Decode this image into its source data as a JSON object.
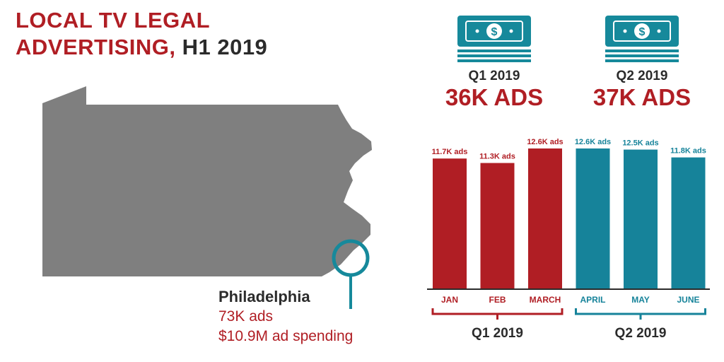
{
  "title": {
    "line1": "LOCAL TV LEGAL",
    "line2_red": "ADVERTISING,",
    "line2_dark": "H1 2019"
  },
  "map": {
    "region_color": "#7f7f7f",
    "callout_color": "#16899b"
  },
  "callout": {
    "city": "Philadelphia",
    "ads": "73K ads",
    "spending": "$10.9M ad spending"
  },
  "quarters": [
    {
      "label": "Q1 2019",
      "value": "36K ADS",
      "icon": "money-stack-icon"
    },
    {
      "label": "Q2 2019",
      "value": "37K ADS",
      "icon": "money-stack-icon"
    }
  ],
  "colors": {
    "q1": "#b01e24",
    "q2": "#16839a",
    "text_dark": "#2b2b2b",
    "map_gray": "#7f7f7f"
  },
  "chart_data": {
    "type": "bar",
    "categories": [
      "JAN",
      "FEB",
      "MARCH",
      "APRIL",
      "MAY",
      "JUNE"
    ],
    "values": [
      11.7,
      11.3,
      12.6,
      12.6,
      12.5,
      11.8
    ],
    "data_labels": [
      "11.7K ads",
      "11.3K ads",
      "12.6K ads",
      "12.6K ads",
      "12.5K ads",
      "11.8K ads"
    ],
    "groups": [
      {
        "label": "Q1 2019",
        "members": [
          0,
          1,
          2
        ],
        "color": "#b01e24"
      },
      {
        "label": "Q2 2019",
        "members": [
          3,
          4,
          5
        ],
        "color": "#16839a"
      }
    ],
    "ylim": [
      0,
      12.6
    ],
    "grid": false,
    "title": "",
    "xlabel": "",
    "ylabel": ""
  }
}
